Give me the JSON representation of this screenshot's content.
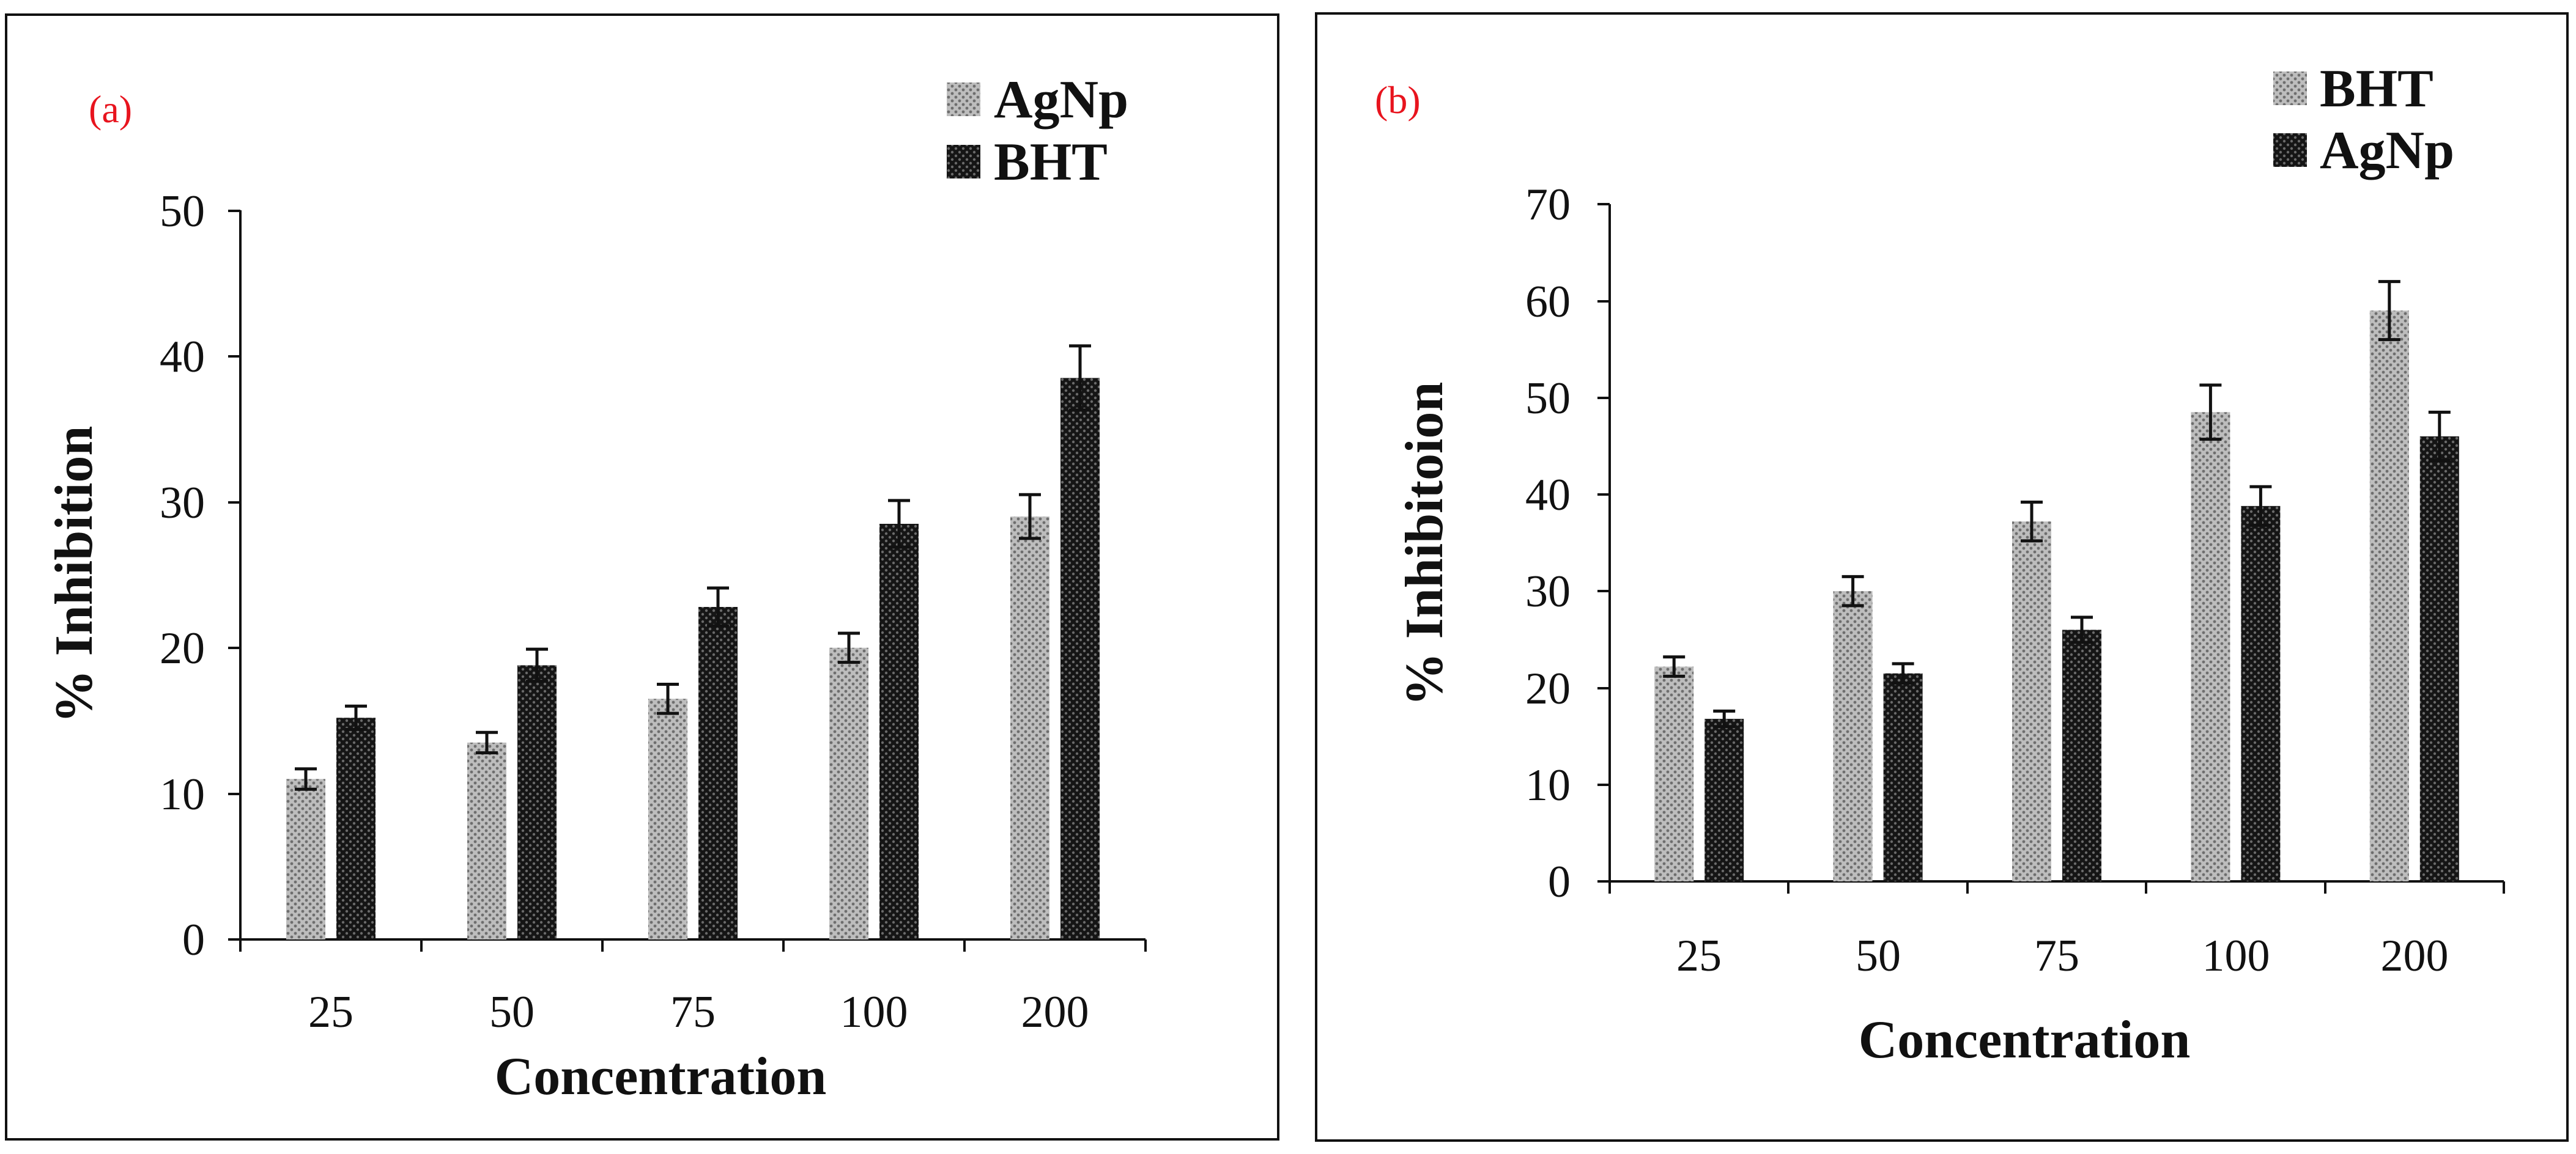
{
  "colors": {
    "panel_label": "#e8141e",
    "series_light": "#9a9a9a",
    "series_dark": "#2a2a2a",
    "axis": "#111111",
    "border": "#111111"
  },
  "chart_data": [
    {
      "type": "bar",
      "panel_label": "(a)",
      "xlabel": "Concentration",
      "ylabel": "% Inhibition",
      "categories": [
        "25",
        "50",
        "75",
        "100",
        "200"
      ],
      "ylim": [
        0,
        50
      ],
      "yticks": [
        0,
        10,
        20,
        30,
        40,
        50
      ],
      "legend_position": "top-right",
      "series": [
        {
          "name": "AgNp",
          "style": "light",
          "values": [
            11,
            13.5,
            16.5,
            20,
            29
          ],
          "errors": [
            0.7,
            0.7,
            1.0,
            1.0,
            1.5
          ]
        },
        {
          "name": "BHT",
          "style": "dark",
          "values": [
            15.2,
            18.8,
            22.8,
            28.5,
            38.5
          ],
          "errors": [
            0.8,
            1.1,
            1.3,
            1.6,
            2.2
          ]
        }
      ]
    },
    {
      "type": "bar",
      "panel_label": "(b)",
      "xlabel": "Concentration",
      "ylabel": "% Inhibitoion",
      "categories": [
        "25",
        "50",
        "75",
        "100",
        "200"
      ],
      "ylim": [
        0,
        70
      ],
      "yticks": [
        0,
        10,
        20,
        30,
        40,
        50,
        60,
        70
      ],
      "legend_position": "top-right",
      "series": [
        {
          "name": "BHT",
          "style": "light",
          "values": [
            22.2,
            30,
            37.2,
            48.5,
            59
          ],
          "errors": [
            1.0,
            1.5,
            2.0,
            2.8,
            3.0
          ]
        },
        {
          "name": "AgNp",
          "style": "dark",
          "values": [
            16.8,
            21.5,
            26,
            38.8,
            46
          ],
          "errors": [
            0.8,
            1.0,
            1.3,
            2.0,
            2.5
          ]
        }
      ]
    }
  ]
}
